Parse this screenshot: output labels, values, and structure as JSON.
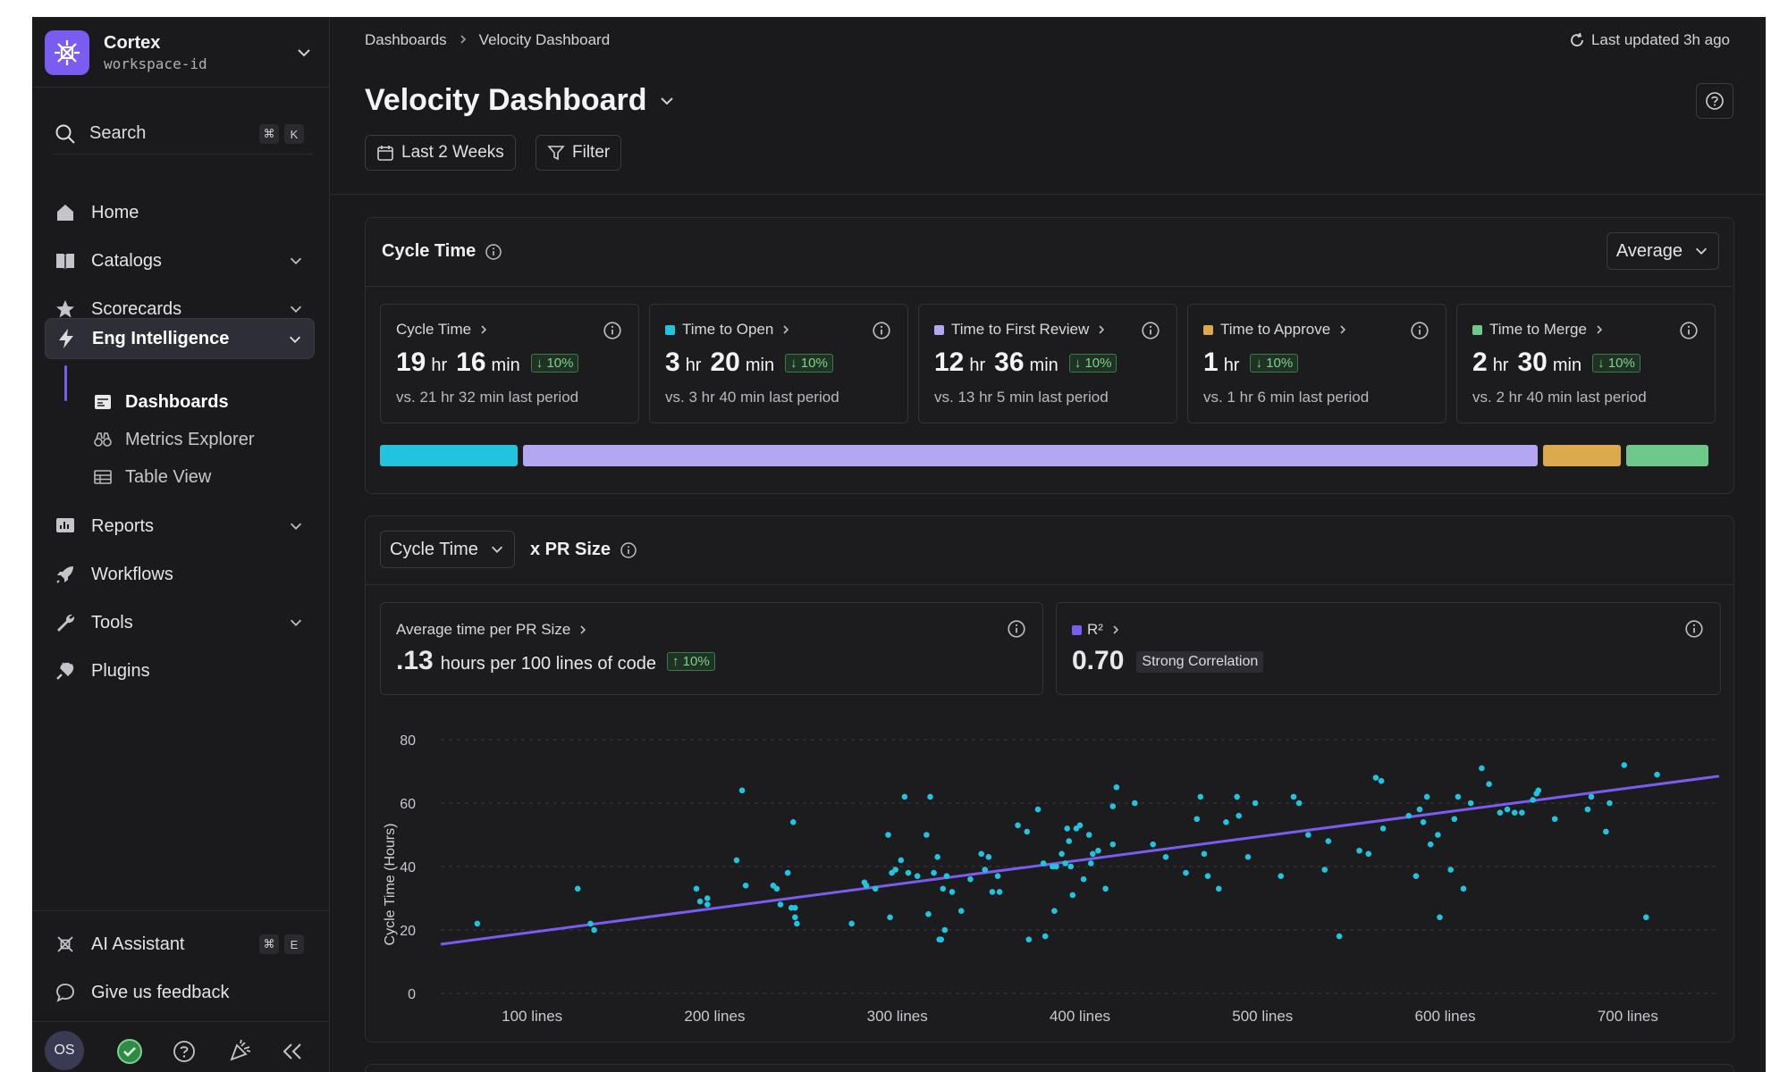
{
  "workspace": {
    "name": "Cortex",
    "id": "workspace-id"
  },
  "search": {
    "label": "Search",
    "kbd": [
      "⌘",
      "K"
    ]
  },
  "nav": {
    "home": "Home",
    "catalogs": "Catalogs",
    "scorecards": "Scorecards",
    "eng_intelligence": "Eng Intelligence",
    "sub": {
      "dashboards": "Dashboards",
      "metrics_explorer": "Metrics Explorer",
      "table_view": "Table View"
    },
    "reports": "Reports",
    "workflows": "Workflows",
    "tools": "Tools",
    "plugins": "Plugins"
  },
  "footer": {
    "ai_assistant": "AI Assistant",
    "ai_kbd": [
      "⌘",
      "E"
    ],
    "feedback": "Give us feedback",
    "avatar": "OS"
  },
  "breadcrumb": [
    "Dashboards",
    "Velocity Dashboard"
  ],
  "last_updated": "Last updated 3h ago",
  "page_title": "Velocity Dashboard",
  "toolbar": {
    "date_range": "Last 2 Weeks",
    "filter": "Filter"
  },
  "cycle_card": {
    "title": "Cycle Time",
    "aggregation": "Average",
    "metrics": [
      {
        "label": "Cycle Time",
        "color": "",
        "v1": "19",
        "u1": "hr",
        "v2": "16",
        "u2": "min",
        "delta": "↓ 10%",
        "sub": "vs. 21 hr 32 min last period"
      },
      {
        "label": "Time to Open",
        "color": "#22c3dc",
        "v1": "3",
        "u1": "hr",
        "v2": "20",
        "u2": "min",
        "delta": "↓ 10%",
        "sub": "vs. 3 hr 40 min last period"
      },
      {
        "label": "Time to First Review",
        "color": "#b3a6f2",
        "v1": "12",
        "u1": "hr",
        "v2": "36",
        "u2": "min",
        "delta": "↓ 10%",
        "sub": "vs. 13 hr 5 min last period"
      },
      {
        "label": "Time to Approve",
        "color": "#dca94c",
        "v1": "1",
        "u1": "hr",
        "v2": "",
        "u2": "",
        "delta": "↓ 10%",
        "sub": "vs. 1 hr 6 min last period"
      },
      {
        "label": "Time to Merge",
        "color": "#6cc98a",
        "v1": "2",
        "u1": "hr",
        "v2": "30",
        "u2": "min",
        "delta": "↓ 10%",
        "sub": "vs. 2 hr 40 min last period"
      }
    ],
    "breakdown": [
      {
        "name": "Time to Open",
        "color": "#22c3dc",
        "fraction": 0.104
      },
      {
        "name": "Time to First Review",
        "color": "#b3a6f2",
        "fraction": 0.768
      },
      {
        "name": "Time to Approve",
        "color": "#dca94c",
        "fraction": 0.059
      },
      {
        "name": "Time to Merge",
        "color": "#6cc98a",
        "fraction": 0.062
      }
    ]
  },
  "pr_card": {
    "metric_select": "Cycle Time",
    "suffix": "x PR Size",
    "avg": {
      "label": "Average time per PR Size",
      "value": ".13",
      "unit": "hours per 100 lines of code",
      "delta": "↑ 10%"
    },
    "r2": {
      "label": "R²",
      "color": "#7b5cf0",
      "value": "0.70",
      "badge": "Strong Correlation"
    }
  },
  "chart_data": {
    "type": "scatter",
    "ylabel": "Cycle Time (Hours)",
    "xlabel": "",
    "ylim": [
      0,
      80
    ],
    "xlim": [
      50,
      750
    ],
    "yticks": [
      0,
      20,
      40,
      60,
      80
    ],
    "xticks": [
      100,
      200,
      300,
      400,
      500,
      600,
      700
    ],
    "xtick_labels": [
      "100 lines",
      "200 lines",
      "300 lines",
      "400 lines",
      "500 lines",
      "600 lines",
      "700 lines"
    ],
    "grid": true,
    "point_color": "#22c3dc",
    "trend_color": "#7b5cf0",
    "trend": [
      [
        50,
        15.5
      ],
      [
        750,
        68.5
      ]
    ],
    "points": [
      [
        70,
        22
      ],
      [
        125,
        33
      ],
      [
        132,
        22
      ],
      [
        134,
        20
      ],
      [
        190,
        33
      ],
      [
        192,
        29
      ],
      [
        196,
        30
      ],
      [
        196,
        28
      ],
      [
        212,
        42
      ],
      [
        215,
        64
      ],
      [
        217,
        34
      ],
      [
        232,
        34
      ],
      [
        234,
        33
      ],
      [
        236,
        28
      ],
      [
        240,
        38
      ],
      [
        242,
        27
      ],
      [
        243,
        54
      ],
      [
        244,
        27
      ],
      [
        244,
        24
      ],
      [
        245,
        22
      ],
      [
        275,
        22
      ],
      [
        282,
        35
      ],
      [
        283,
        34
      ],
      [
        288,
        33
      ],
      [
        295,
        50
      ],
      [
        296,
        24
      ],
      [
        297,
        38
      ],
      [
        299,
        39
      ],
      [
        302,
        42
      ],
      [
        304,
        62
      ],
      [
        306,
        38
      ],
      [
        311,
        37
      ],
      [
        316,
        50
      ],
      [
        317,
        25
      ],
      [
        318,
        62
      ],
      [
        320,
        38
      ],
      [
        322,
        43
      ],
      [
        323,
        17
      ],
      [
        324,
        17
      ],
      [
        325,
        33
      ],
      [
        326,
        20
      ],
      [
        327,
        37
      ],
      [
        330,
        32
      ],
      [
        335,
        26
      ],
      [
        340,
        36
      ],
      [
        346,
        44
      ],
      [
        348,
        39
      ],
      [
        350,
        43
      ],
      [
        352,
        32
      ],
      [
        355,
        37
      ],
      [
        356,
        32
      ],
      [
        366,
        53
      ],
      [
        371,
        51
      ],
      [
        372,
        17
      ],
      [
        377,
        58
      ],
      [
        380,
        41
      ],
      [
        381,
        18
      ],
      [
        385,
        40
      ],
      [
        386,
        26
      ],
      [
        387,
        40
      ],
      [
        390,
        44
      ],
      [
        392,
        41
      ],
      [
        393,
        52
      ],
      [
        394,
        48
      ],
      [
        395,
        40
      ],
      [
        396,
        31
      ],
      [
        398,
        52
      ],
      [
        400,
        53
      ],
      [
        402,
        36
      ],
      [
        405,
        50
      ],
      [
        406,
        41
      ],
      [
        407,
        44
      ],
      [
        410,
        45
      ],
      [
        414,
        33
      ],
      [
        418,
        47
      ],
      [
        418,
        59
      ],
      [
        420,
        65
      ],
      [
        430,
        60
      ],
      [
        440,
        47
      ],
      [
        447,
        43
      ],
      [
        458,
        38
      ],
      [
        464,
        55
      ],
      [
        466,
        62
      ],
      [
        468,
        44
      ],
      [
        470,
        37
      ],
      [
        476,
        33
      ],
      [
        480,
        54
      ],
      [
        486,
        62
      ],
      [
        487,
        56
      ],
      [
        492,
        43
      ],
      [
        496,
        60
      ],
      [
        510,
        37
      ],
      [
        517,
        62
      ],
      [
        520,
        60
      ],
      [
        525,
        50
      ],
      [
        534,
        39
      ],
      [
        536,
        48
      ],
      [
        542,
        18
      ],
      [
        553,
        45
      ],
      [
        558,
        44
      ],
      [
        562,
        68
      ],
      [
        565,
        67
      ],
      [
        566,
        52
      ],
      [
        580,
        56
      ],
      [
        584,
        37
      ],
      [
        586,
        58
      ],
      [
        588,
        54
      ],
      [
        590,
        62
      ],
      [
        592,
        47
      ],
      [
        596,
        50
      ],
      [
        597,
        24
      ],
      [
        603,
        39
      ],
      [
        605,
        55
      ],
      [
        607,
        62
      ],
      [
        610,
        33
      ],
      [
        614,
        60
      ],
      [
        620,
        71
      ],
      [
        624,
        66
      ],
      [
        630,
        57
      ],
      [
        634,
        58
      ],
      [
        638,
        57
      ],
      [
        642,
        57
      ],
      [
        648,
        61
      ],
      [
        650,
        63
      ],
      [
        651,
        64
      ],
      [
        660,
        55
      ],
      [
        678,
        58
      ],
      [
        680,
        62
      ],
      [
        688,
        51
      ],
      [
        690,
        60
      ],
      [
        698,
        72
      ],
      [
        710,
        24
      ],
      [
        716,
        69
      ]
    ]
  }
}
